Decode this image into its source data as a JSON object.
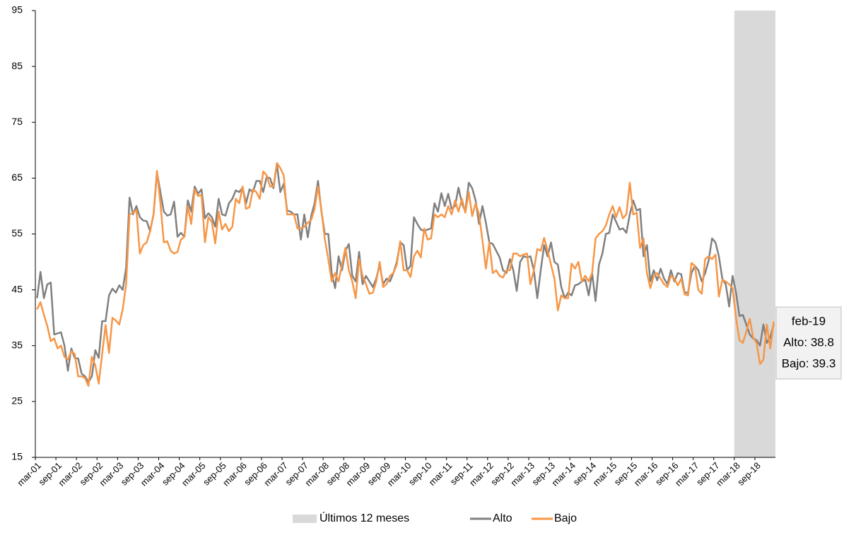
{
  "chart_data": {
    "type": "line",
    "categories": [
      "mar-01",
      null,
      null,
      null,
      null,
      null,
      "sep-01",
      null,
      null,
      null,
      null,
      null,
      "mar-02",
      null,
      null,
      null,
      null,
      null,
      "sep-02",
      null,
      null,
      null,
      null,
      null,
      "mar-03",
      null,
      null,
      null,
      null,
      null,
      "sep-03",
      null,
      null,
      null,
      null,
      null,
      "mar-04",
      null,
      null,
      null,
      null,
      null,
      "sep-04",
      null,
      null,
      null,
      null,
      null,
      "mar-05",
      null,
      null,
      null,
      null,
      null,
      "sep-05",
      null,
      null,
      null,
      null,
      null,
      "mar-06",
      null,
      null,
      null,
      null,
      null,
      "sep-06",
      null,
      null,
      null,
      null,
      null,
      "mar-07",
      null,
      null,
      null,
      null,
      null,
      "sep-07",
      null,
      null,
      null,
      null,
      null,
      "mar-08",
      null,
      null,
      null,
      null,
      null,
      "sep-08",
      null,
      null,
      null,
      null,
      null,
      "mar-09",
      null,
      null,
      null,
      null,
      null,
      "sep-09",
      null,
      null,
      null,
      null,
      null,
      "mar-10",
      null,
      null,
      null,
      null,
      null,
      "sep-10",
      null,
      null,
      null,
      null,
      null,
      "mar-11",
      null,
      null,
      null,
      null,
      null,
      "sep-11",
      null,
      null,
      null,
      null,
      null,
      "mar-12",
      null,
      null,
      null,
      null,
      null,
      "sep-12",
      null,
      null,
      null,
      null,
      null,
      "mar-13",
      null,
      null,
      null,
      null,
      null,
      "sep-13",
      null,
      null,
      null,
      null,
      null,
      "mar-14",
      null,
      null,
      null,
      null,
      null,
      "sep-14",
      null,
      null,
      null,
      null,
      null,
      "mar-15",
      null,
      null,
      null,
      null,
      null,
      "sep-15",
      null,
      null,
      null,
      null,
      null,
      "mar-16",
      null,
      null,
      null,
      null,
      null,
      "sep-16",
      null,
      null,
      null,
      null,
      null,
      "mar-17",
      null,
      null,
      null,
      null,
      null,
      "sep-17",
      null,
      null,
      null,
      null,
      null,
      "mar-18",
      null,
      null,
      null,
      null,
      null,
      "sep-18",
      null,
      null,
      null,
      null,
      null
    ],
    "series": [
      {
        "name": "Alto",
        "color": "#808080",
        "values": [
          43.5,
          48.2,
          43.5,
          46,
          46.3,
          37,
          37.2,
          37.4,
          35,
          30.5,
          34.5,
          32.8,
          32.7,
          30,
          29.5,
          28.5,
          29.5,
          34.2,
          32.8,
          39.4,
          39.4,
          44,
          45.2,
          44.5,
          45.8,
          45,
          49,
          61.5,
          58.5,
          60,
          58,
          57.4,
          57.3,
          55.5,
          58.5,
          66,
          62.5,
          59,
          58.3,
          58.5,
          60.8,
          54.5,
          55.2,
          54.5,
          61,
          59,
          63.5,
          62.2,
          63,
          57.8,
          58.7,
          58,
          56.3,
          61.3,
          58.5,
          58.3,
          60.5,
          61.3,
          62.8,
          62.5,
          63.3,
          60.5,
          63,
          62.5,
          64.5,
          64.5,
          62.5,
          65.2,
          65,
          63.2,
          67.5,
          62.5,
          64,
          59.2,
          59,
          58.5,
          58.5,
          54,
          58.5,
          54.4,
          58.2,
          60.5,
          64.5,
          59,
          55,
          55,
          48,
          45.3,
          51,
          48.5,
          52,
          53.2,
          47.5,
          46.5,
          51.8,
          46,
          47.5,
          46.5,
          45.5,
          47,
          49.5,
          46,
          47,
          46.5,
          48,
          50,
          53.5,
          53,
          48.5,
          49.3,
          58,
          56.8,
          55.8,
          55.5,
          55.8,
          56,
          60.5,
          59,
          62.3,
          60,
          62.2,
          59.5,
          60,
          63.3,
          60.5,
          59,
          64.2,
          63.2,
          61,
          56.8,
          60,
          57,
          53.5,
          53.2,
          52,
          50.8,
          48.5,
          48,
          50.5,
          48.5,
          44.8,
          50,
          51,
          50.8,
          51,
          48.5,
          43.5,
          48.5,
          53,
          51,
          53.5,
          50,
          49.5,
          45.5,
          43.5,
          44.5,
          44,
          45.8,
          46,
          46.5,
          46.8,
          44,
          48,
          43,
          49.5,
          51.5,
          55,
          55.2,
          58.5,
          57.2,
          55.8,
          56,
          55.2,
          58.5,
          61,
          59.2,
          59.5,
          51,
          53,
          46.5,
          48.5,
          46.7,
          48.8,
          47,
          46,
          48.5,
          46.5,
          48,
          47.8,
          44.5,
          44.5,
          48,
          49.3,
          48.5,
          46.5,
          48,
          50.2,
          54.2,
          53.5,
          51,
          47,
          46,
          42,
          47.5,
          44.5,
          40.3,
          40.5,
          38.8,
          37,
          36.3,
          36,
          35,
          38.8,
          35.5,
          36.5,
          38.8
        ]
      },
      {
        "name": "Bajo",
        "color": "#f79646",
        "values": [
          41.5,
          42.8,
          40.5,
          38.5,
          35.8,
          36.3,
          34.5,
          35,
          33,
          32.5,
          34,
          33.5,
          29.5,
          29.5,
          29.2,
          27.8,
          33,
          31.5,
          28.2,
          33.5,
          38.7,
          33.7,
          40,
          39.5,
          38.8,
          41.5,
          46,
          58.5,
          58.8,
          59.3,
          51.5,
          53,
          53.5,
          55.5,
          58.5,
          66.3,
          60.5,
          53.5,
          53.7,
          52,
          51.5,
          51.8,
          54,
          54.5,
          60,
          56.8,
          63,
          61.8,
          62,
          53.5,
          58,
          57.2,
          53.3,
          59,
          55.8,
          56.8,
          55.5,
          56.3,
          61.3,
          60.5,
          63.5,
          59.5,
          59.8,
          63,
          62.5,
          61.3,
          66.2,
          65.5,
          63.5,
          63.5,
          67.7,
          66.8,
          65.5,
          58.5,
          58.5,
          58.5,
          56,
          56,
          56.3,
          57,
          57.5,
          59.5,
          63.5,
          59.2,
          54,
          50.5,
          46.5,
          48,
          46.5,
          49.5,
          52.5,
          48.5,
          46.5,
          43.5,
          50.5,
          47.5,
          46,
          44.3,
          44.5,
          46.5,
          50,
          45.5,
          46,
          47.5,
          48,
          49.5,
          53.7,
          48.5,
          48.5,
          47.3,
          51,
          52,
          50.8,
          56,
          54,
          54.2,
          58.5,
          58,
          58.5,
          58,
          60,
          58.5,
          61,
          59,
          61.3,
          58.8,
          62.5,
          58.2,
          60.5,
          58.5,
          53.8,
          48.8,
          53.5,
          48,
          48.5,
          47.5,
          47.2,
          48.5,
          48.5,
          51.5,
          51.5,
          51,
          51.3,
          51.5,
          46,
          48.5,
          52.3,
          52,
          54.3,
          52,
          49.5,
          47,
          41.3,
          44,
          43.5,
          43.5,
          49.7,
          48.8,
          50,
          46.5,
          47.5,
          46.5,
          48,
          54.2,
          55,
          55.5,
          56.5,
          58.5,
          60,
          58,
          59.8,
          57.8,
          58.5,
          64.2,
          58.5,
          58.8,
          52.5,
          54.2,
          48,
          45.3,
          47.5,
          48,
          47,
          46,
          45.5,
          47.5,
          47,
          45.8,
          47,
          44.2,
          44,
          49.8,
          49.3,
          45,
          44.3,
          50.5,
          51,
          50.5,
          51.3,
          43.8,
          46.8,
          46.5,
          46,
          45.3,
          40,
          36,
          35.5,
          37.5,
          39.8,
          36.5,
          35.5,
          31.7,
          32.5,
          38.8,
          34.5,
          39.3
        ]
      }
    ],
    "shade": {
      "name": "Últimos 12 meses",
      "color": "#d9d9d9",
      "from": "mar-18"
    },
    "annotation": [
      "feb-19",
      "Alto: 38.8",
      "Bajo: 39.3"
    ],
    "ylim": [
      15,
      95
    ],
    "yticks": [
      15,
      25,
      35,
      45,
      55,
      65,
      75,
      85,
      95
    ],
    "grid": false
  }
}
